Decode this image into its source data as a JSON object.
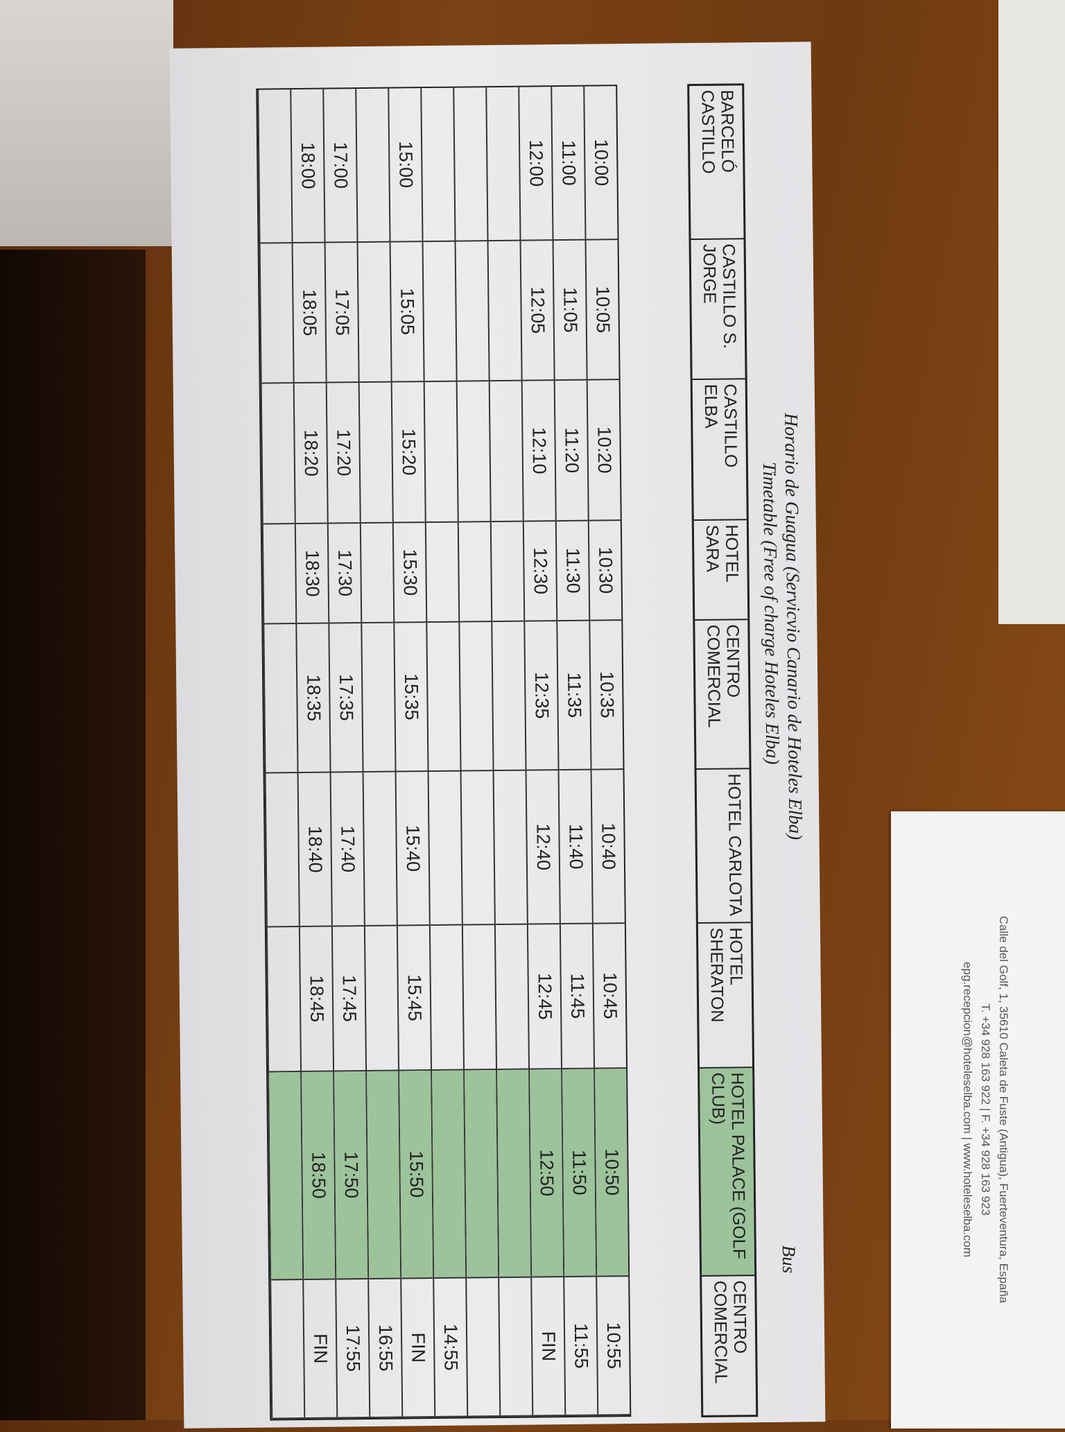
{
  "document": {
    "title_line1": "Horario de Guagua (Servicvio Canario de Hoteles Elba)",
    "title_line2": "Timetable (Free of charge Hoteles Elba)",
    "bus_label": "Bus",
    "highlight_color": "#9dc39b",
    "headers": [
      "BARCELÓ CASTILLO",
      "CASTILLO S. JORGE",
      "CASTILLO ELBA",
      "HOTEL SARA",
      "CENTRO COMERCIAL",
      "HOTEL CARLOTA",
      "HOTEL SHERATON",
      "HOTEL PALACE (GOLF CLUB)",
      "CENTRO COMERCIAL"
    ],
    "rows": [
      [
        "10:00",
        "10:05",
        "10:20",
        "10:30",
        "10:35",
        "10:40",
        "10:45",
        "10:50",
        "10:55"
      ],
      [
        "11:00",
        "11:05",
        "11:20",
        "11:30",
        "11:35",
        "11:40",
        "11:45",
        "11:50",
        "11:55"
      ],
      [
        "12:00",
        "12:05",
        "12:10",
        "12:30",
        "12:35",
        "12:40",
        "12:45",
        "12:50",
        "FIN"
      ],
      [
        "",
        "",
        "",
        "",
        "",
        "",
        "",
        "",
        ""
      ],
      [
        "",
        "",
        "",
        "",
        "",
        "",
        "",
        "",
        ""
      ],
      [
        "",
        "",
        "",
        "",
        "",
        "",
        "",
        "",
        "14:55"
      ],
      [
        "15:00",
        "15:05",
        "15:20",
        "15:30",
        "15:35",
        "15:40",
        "15:45",
        "15:50",
        "FIN"
      ],
      [
        "",
        "",
        "",
        "",
        "",
        "",
        "",
        "",
        "16:55"
      ],
      [
        "17:00",
        "17:05",
        "17:20",
        "17:30",
        "17:35",
        "17:40",
        "17:45",
        "17:50",
        "17:55"
      ],
      [
        "18:00",
        "18:05",
        "18:20",
        "18:30",
        "18:35",
        "18:40",
        "18:45",
        "18:50",
        "FIN"
      ],
      [
        "",
        "",
        "",
        "",
        "",
        "",
        "",
        "",
        ""
      ]
    ]
  },
  "card": {
    "address": "Calle del Golf, 1, 35610 Caleta de Fuste (Antigua), Fuerteventura, España",
    "phone": "T. +34 928 163 922  |  F. +34 928 163 923",
    "contact": "epg.recepcion@hoteleselba.com  |  www.hoteleselba.com"
  }
}
